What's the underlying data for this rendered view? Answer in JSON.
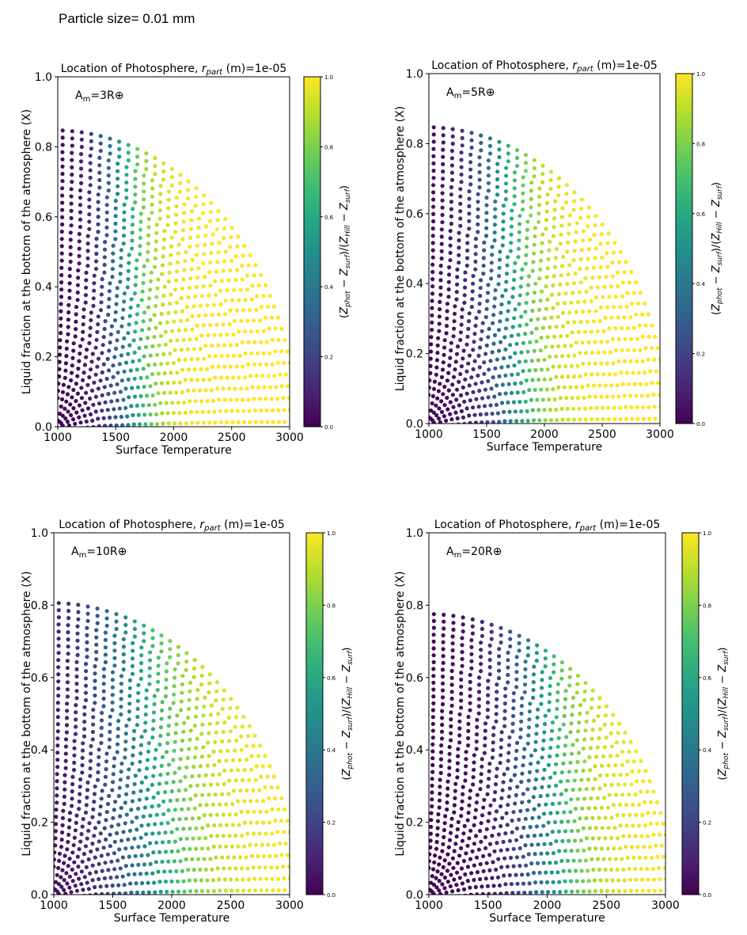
{
  "page": {
    "title": "Particle size= 0.01 mm"
  },
  "chart_data": [
    {
      "type": "scatter",
      "title": "Location of Photosphere, r_part (m)=1e-05",
      "title_parts": {
        "prefix": "Location of Photosphere, ",
        "var": "r",
        "sub": "part",
        "suffix": " (m)=1e-05"
      },
      "annotation": "Am=3R⊕",
      "annotation_parts": {
        "a": "A",
        "sub": "m",
        "rest": "=3R⊕"
      },
      "xlabel": "Surface Temperature",
      "ylabel": "Liquid fraction at the bottom of the atmosphere (X)",
      "xlim": [
        1000,
        3000
      ],
      "ylim": [
        0,
        1
      ],
      "xticks": [
        "1000",
        "1500",
        "2000",
        "2500",
        "3000"
      ],
      "yticks": [
        "0.0",
        "0.2",
        "0.4",
        "0.6",
        "0.8",
        "1.0"
      ],
      "colorbar": {
        "label": "(Z_phot − Z_surf)/(Z_Hill − Z_surf)",
        "ticks": [
          "0.0",
          "0.2",
          "0.4",
          "0.6",
          "0.8",
          "1.0"
        ],
        "range": [
          0,
          1
        ],
        "cmap": "viridis"
      },
      "model": {
        "outer_arc_max_x": 0.85,
        "transition_temperature": 1650,
        "transition_width": 140
      }
    },
    {
      "type": "scatter",
      "title": "Location of Photosphere, r_part (m)=1e-05",
      "title_parts": {
        "prefix": "Location of Photosphere, ",
        "var": "r",
        "sub": "part",
        "suffix": " (m)=1e-05"
      },
      "annotation": "Am=5R⊕",
      "annotation_parts": {
        "a": "A",
        "sub": "m",
        "rest": "=5R⊕"
      },
      "xlabel": "Surface Temperature",
      "ylabel": "Liquid fraction at the bottom of the atmosphere (X)",
      "xlim": [
        1000,
        3000
      ],
      "ylim": [
        0,
        1
      ],
      "xticks": [
        "1000",
        "1500",
        "2000",
        "2500",
        "3000"
      ],
      "yticks": [
        "0.0",
        "0.2",
        "0.4",
        "0.6",
        "0.8",
        "1.0"
      ],
      "colorbar": {
        "label": "(Z_phot − Z_surf)/(Z_Hill − Z_surf)",
        "ticks": [
          "0.0",
          "0.2",
          "0.4",
          "0.6",
          "0.8",
          "1.0"
        ],
        "range": [
          0,
          1
        ],
        "cmap": "viridis"
      },
      "model": {
        "outer_arc_max_x": 0.85,
        "transition_temperature": 1750,
        "transition_width": 170
      }
    },
    {
      "type": "scatter",
      "title": "Location of Photosphere, r_part (m)=1e-05",
      "title_parts": {
        "prefix": "Location of Photosphere, ",
        "var": "r",
        "sub": "part",
        "suffix": " (m)=1e-05"
      },
      "annotation": "Am=10R⊕",
      "annotation_parts": {
        "a": "A",
        "sub": "m",
        "rest": "=10R⊕"
      },
      "xlabel": "Surface Temperature",
      "ylabel": "Liquid fraction at the bottom of the atmosphere (X)",
      "xlim": [
        1000,
        3000
      ],
      "ylim": [
        0,
        1
      ],
      "xticks": [
        "1000",
        "1500",
        "2000",
        "2500",
        "3000"
      ],
      "yticks": [
        "0.0",
        "0.2",
        "0.4",
        "0.6",
        "0.8",
        "1.0"
      ],
      "colorbar": {
        "label": "(Z_phot − Z_surf)/(Z_Hill − Z_surf)",
        "ticks": [
          "0.0",
          "0.2",
          "0.4",
          "0.6",
          "0.8",
          "1.0"
        ],
        "range": [
          0,
          1
        ],
        "cmap": "viridis"
      },
      "model": {
        "outer_arc_max_x": 0.81,
        "transition_temperature": 1850,
        "transition_width": 260
      }
    },
    {
      "type": "scatter",
      "title": "Location of Photosphere, r_part (m)=1e-05",
      "title_parts": {
        "prefix": "Location of Photosphere, ",
        "var": "r",
        "sub": "part",
        "suffix": " (m)=1e-05"
      },
      "annotation": "Am=20R⊕",
      "annotation_parts": {
        "a": "A",
        "sub": "m",
        "rest": "=20R⊕"
      },
      "xlabel": "Surface Temperature",
      "ylabel": "Liquid fraction at the bottom of the atmosphere (X)",
      "xlim": [
        1000,
        3000
      ],
      "ylim": [
        0,
        1
      ],
      "xticks": [
        "1000",
        "1500",
        "2000",
        "2500",
        "3000"
      ],
      "yticks": [
        "0.0",
        "0.2",
        "0.4",
        "0.6",
        "0.8",
        "1.0"
      ],
      "colorbar": {
        "label": "(Z_phot − Z_surf)/(Z_Hill − Z_surf)",
        "ticks": [
          "0.0",
          "0.2",
          "0.4",
          "0.6",
          "0.8",
          "1.0"
        ],
        "range": [
          0,
          1
        ],
        "cmap": "viridis"
      },
      "model": {
        "outer_arc_max_x": 0.78,
        "transition_temperature": 2050,
        "transition_width": 200
      }
    }
  ]
}
